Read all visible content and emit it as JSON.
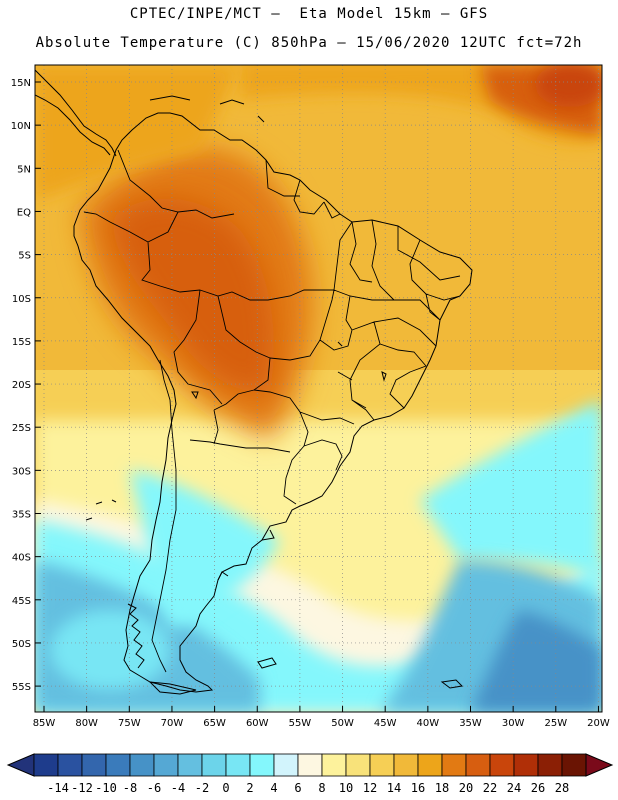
{
  "header": {
    "line1": "CPTEC/INPE/MCT –  Eta Model 15km – GFS",
    "line2": "Absolute Temperature (C) 850hPa – 15/06/2020 12UTC fct=72h"
  },
  "map": {
    "lat_labels": [
      "15N",
      "10N",
      "5N",
      "EQ",
      "5S",
      "10S",
      "15S",
      "20S",
      "25S",
      "30S",
      "35S",
      "40S",
      "45S",
      "50S",
      "55S"
    ],
    "lon_labels": [
      "85W",
      "80W",
      "75W",
      "70W",
      "65W",
      "60W",
      "55W",
      "50W",
      "45W",
      "40W",
      "35W",
      "30W",
      "25W",
      "20W"
    ],
    "lat_values": [
      15,
      10,
      5,
      0,
      -5,
      -10,
      -15,
      -20,
      -25,
      -30,
      -35,
      -40,
      -45,
      -50,
      -55
    ],
    "lon_values": [
      -85,
      -80,
      -75,
      -70,
      -65,
      -60,
      -55,
      -50,
      -45,
      -40,
      -35,
      -30,
      -25,
      -20
    ],
    "fields": [
      {
        "name": "amazon-heat",
        "lon": -62,
        "lat": -9,
        "value": 23
      },
      {
        "name": "caribbean-heat",
        "lon": -23,
        "lat": 13,
        "value": 23
      },
      {
        "name": "chaco-heat",
        "lon": -60,
        "lat": -21,
        "value": 22
      },
      {
        "name": "atlantic-cold",
        "lon": -22,
        "lat": -52,
        "value": -6
      },
      {
        "name": "patagonia-cold",
        "lon": -74,
        "lat": -50,
        "value": 0
      }
    ]
  },
  "colorbar": {
    "labels": [
      "-14",
      "-12",
      "-10",
      "-8",
      "-6",
      "-4",
      "-2",
      "0",
      "2",
      "4",
      "6",
      "8",
      "10",
      "12",
      "14",
      "16",
      "18",
      "20",
      "22",
      "24",
      "26",
      "28"
    ],
    "colors": [
      "#1e3c8c",
      "#2a52a0",
      "#3366ad",
      "#3a7bbb",
      "#4692c7",
      "#55a8d4",
      "#64bfe0",
      "#6cd4ea",
      "#78e6f4",
      "#84f7fc",
      "#d2f4fc",
      "#fdf7e1",
      "#fdf29c",
      "#f8e27a",
      "#f6cf55",
      "#f1b939",
      "#eda51a",
      "#e27a13",
      "#d75e10",
      "#c9450b",
      "#b02f07",
      "#8b1f05",
      "#6a1403"
    ],
    "under_color": "#22337a",
    "over_color": "#7a0a1a"
  }
}
